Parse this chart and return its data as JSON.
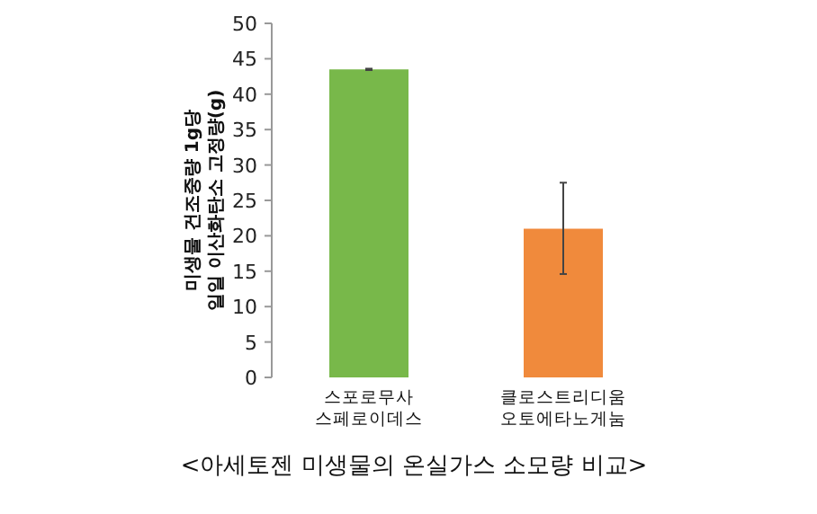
{
  "chart_data": {
    "type": "bar",
    "title": "<아세토젠 미생물의 온실가스 소모량 비교>",
    "ylabel": "미생물 건조중량 1g당 일일 이산화탄소 고정량(g)",
    "categories": [
      "스포로무사 스페로이데스",
      "클로스트리디움 오토에타노게눔"
    ],
    "values": [
      43.5,
      21
    ],
    "errors": [
      0.1,
      [
        14.6,
        27.5
      ]
    ],
    "colors": [
      "#78b84a",
      "#f08a3c"
    ],
    "ylim": [
      0,
      50
    ],
    "yticks": [
      0,
      5,
      10,
      15,
      20,
      25,
      30,
      35,
      40,
      45,
      50
    ]
  }
}
